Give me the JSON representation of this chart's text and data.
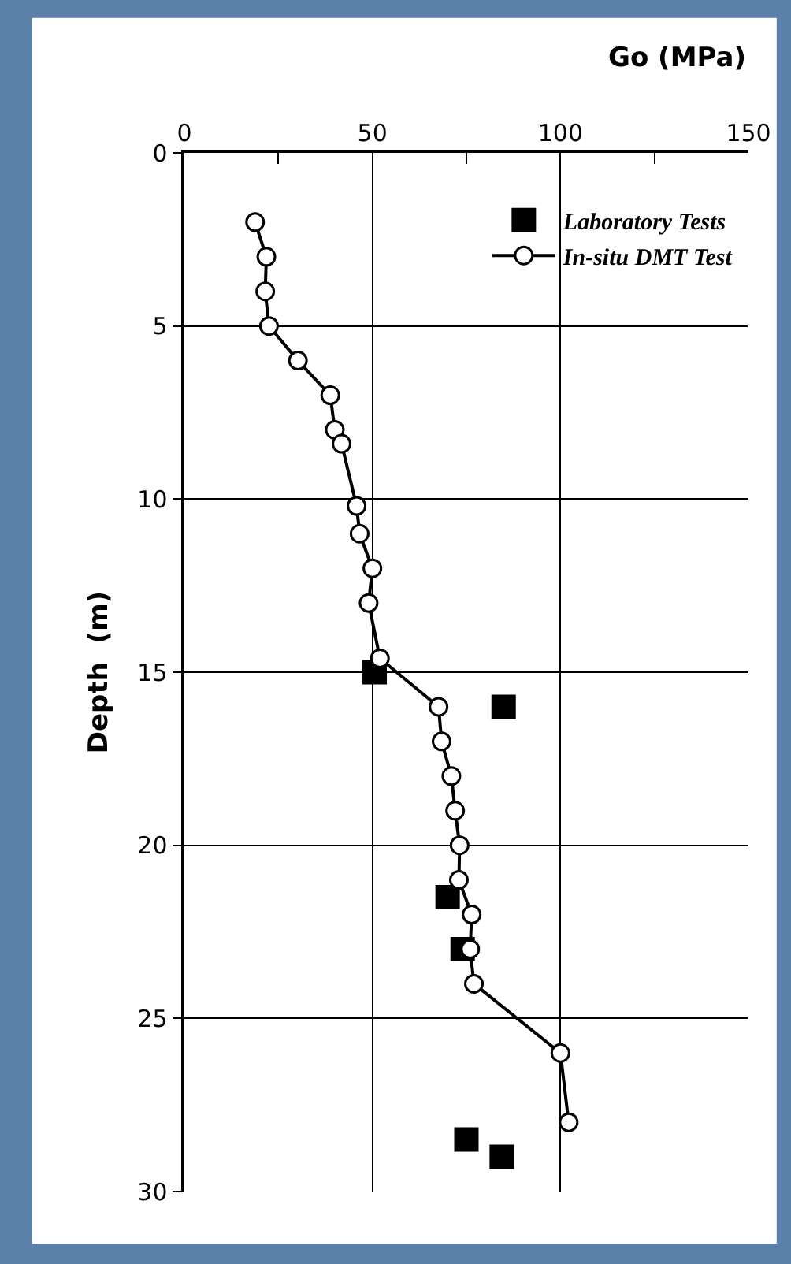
{
  "chart_data": {
    "type": "line",
    "xlabel": "Go (MPa)",
    "ylabel": "Depth  (m)",
    "xlim": [
      0,
      150
    ],
    "xticks": [
      0,
      {
        "value": 25,
        "label": null
      },
      50,
      {
        "value": 75,
        "label": null
      },
      100,
      {
        "value": 125,
        "label": null
      },
      150
    ],
    "ylim": [
      30,
      0
    ],
    "yticks": [
      0,
      5,
      10,
      15,
      20,
      25,
      30
    ],
    "grid": true,
    "legend": "top right",
    "series": [
      {
        "name": "Laboratory Tests",
        "type": "scatter",
        "marker": "square",
        "color": "#000000",
        "x": [
          50.6,
          84.9,
          70,
          74,
          75,
          84.4
        ],
        "values": [
          15,
          16,
          21.5,
          23,
          28.5,
          29
        ]
      },
      {
        "name": "In-situ DMT Test",
        "marker": "circle",
        "line_style": "solid",
        "color": "#000000",
        "x": [
          18.8,
          21.8,
          21.5,
          22.5,
          30.2,
          38.8,
          40,
          41.8,
          45.8,
          46.6,
          50,
          49,
          52,
          67.6,
          68.4,
          71,
          72,
          73.2,
          73,
          76.4,
          76,
          77,
          100,
          102.2
        ],
        "values": [
          2,
          3,
          4,
          5,
          6,
          7,
          8,
          8.4,
          10.2,
          11,
          12,
          13,
          14.6,
          16,
          17,
          18,
          19,
          20,
          21,
          22,
          23,
          24,
          26,
          28
        ]
      }
    ]
  }
}
